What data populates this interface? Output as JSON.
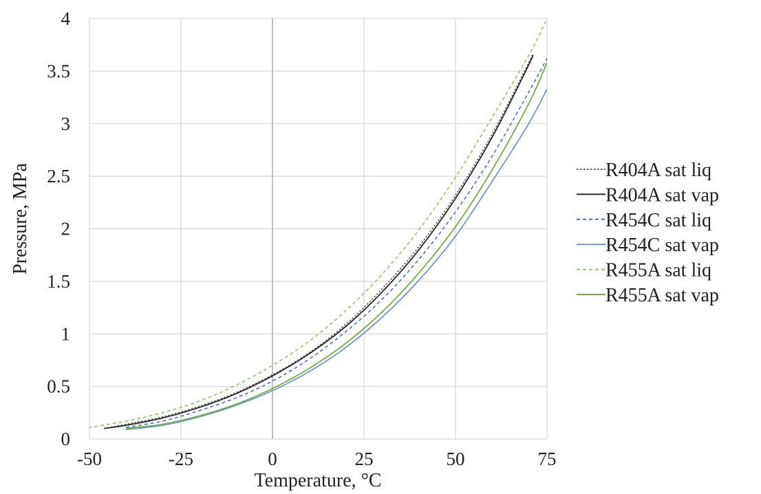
{
  "chart_data": {
    "type": "line",
    "title": "",
    "xlabel": "Temperature, °C",
    "ylabel": "Pressure, MPa",
    "xlim": [
      -50,
      75
    ],
    "ylim": [
      0,
      4
    ],
    "xticks": [
      -50,
      -25,
      0,
      25,
      50,
      75
    ],
    "yticks": [
      0,
      0.5,
      1,
      1.5,
      2,
      2.5,
      3,
      3.5,
      4
    ],
    "xtick_labels": [
      "-50",
      "-25",
      "0",
      "25",
      "50",
      "75"
    ],
    "ytick_labels": [
      "0",
      "0.5",
      "1",
      "1.5",
      "2",
      "2.5",
      "3",
      "3.5",
      "4"
    ],
    "grid": true,
    "legend_position": "right",
    "series": [
      {
        "name": "R404A sat liq",
        "color": "#595959",
        "dash": "dotted",
        "x": [
          -46,
          -40,
          -30,
          -20,
          -10,
          0,
          10,
          20,
          30,
          40,
          50,
          60,
          70,
          71
        ],
        "y": [
          0.1,
          0.14,
          0.21,
          0.31,
          0.44,
          0.61,
          0.82,
          1.09,
          1.43,
          1.83,
          2.32,
          2.9,
          3.58,
          3.65
        ]
      },
      {
        "name": "R404A sat vap",
        "color": "#262626",
        "dash": "solid",
        "x": [
          -46,
          -40,
          -30,
          -20,
          -10,
          0,
          10,
          20,
          30,
          40,
          50,
          60,
          70,
          71
        ],
        "y": [
          0.1,
          0.13,
          0.2,
          0.3,
          0.43,
          0.6,
          0.81,
          1.07,
          1.4,
          1.8,
          2.29,
          2.87,
          3.56,
          3.65
        ]
      },
      {
        "name": "R454C sat liq",
        "color": "#4472c4",
        "dash": "dashed",
        "x": [
          -40,
          -30,
          -20,
          -10,
          0,
          10,
          20,
          30,
          40,
          50,
          60,
          70,
          75
        ],
        "y": [
          0.11,
          0.17,
          0.27,
          0.39,
          0.55,
          0.76,
          1.02,
          1.33,
          1.71,
          2.16,
          2.69,
          3.3,
          3.62
        ]
      },
      {
        "name": "R454C sat vap",
        "color": "#6f94d8",
        "dash": "solid",
        "x": [
          -40,
          -30,
          -20,
          -10,
          0,
          10,
          20,
          30,
          40,
          50,
          60,
          70,
          75
        ],
        "y": [
          0.09,
          0.13,
          0.21,
          0.32,
          0.46,
          0.64,
          0.87,
          1.16,
          1.51,
          1.93,
          2.45,
          3.0,
          3.33
        ]
      },
      {
        "name": "R455A sat liq",
        "color": "#8fca60",
        "dash": "dashed",
        "x": [
          -52,
          -50,
          -40,
          -30,
          -20,
          -10,
          0,
          10,
          20,
          30,
          40,
          50,
          60,
          70,
          75
        ],
        "y": [
          0.1,
          0.11,
          0.17,
          0.25,
          0.36,
          0.51,
          0.7,
          0.93,
          1.22,
          1.57,
          1.99,
          2.49,
          3.06,
          3.65,
          4.0
        ]
      },
      {
        "name": "R455A sat vap",
        "color": "#70ad47",
        "dash": "solid",
        "x": [
          -40,
          -30,
          -20,
          -10,
          0,
          10,
          20,
          30,
          40,
          50,
          60,
          70,
          75
        ],
        "y": [
          0.1,
          0.14,
          0.22,
          0.33,
          0.48,
          0.67,
          0.91,
          1.21,
          1.58,
          2.02,
          2.56,
          3.19,
          3.58
        ]
      }
    ]
  }
}
